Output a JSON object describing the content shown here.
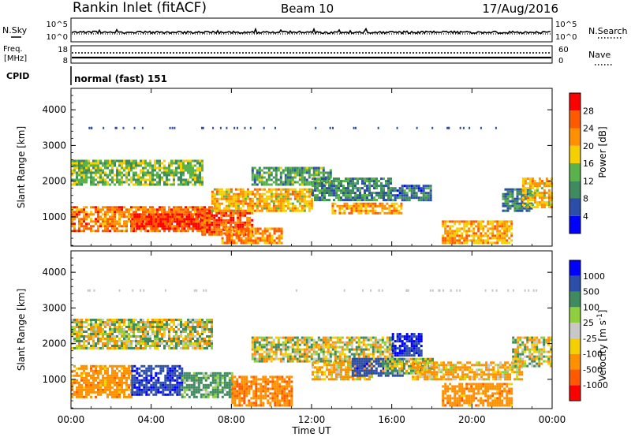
{
  "header": {
    "title": "Rankin Inlet (fitACF)",
    "beam": "Beam 10",
    "date": "17/Aug/2016"
  },
  "summary": {
    "nsky_label": "N.Sky",
    "nsearch_label": "N.Search",
    "nsky_ticks": [
      "10^5",
      "10^0"
    ],
    "nsearch_ticks": [
      "10^5",
      "10^0"
    ],
    "freq_label_1": "Freq.",
    "freq_label_2": "[MHz]",
    "freq_ticks": [
      "18",
      "8"
    ],
    "nave_label": "Nave",
    "nave_ticks": [
      "60",
      "0"
    ],
    "cpid_label": "CPID",
    "cpid_value": "normal (fast) 151"
  },
  "colors": {
    "power_scale": [
      "#0000ff",
      "#2d4ea8",
      "#3f8a5e",
      "#5ab34a",
      "#f5cf00",
      "#ff9000",
      "#ff5a00",
      "#ff0000"
    ],
    "velocity_scale": [
      "#ff0000",
      "#ff5a00",
      "#ff9000",
      "#f5cf00",
      "#c8c8c8",
      "#8fcf3f",
      "#3f8a5e",
      "#2d4ea8",
      "#0000ff"
    ]
  },
  "chart_data": [
    {
      "type": "heatmap",
      "panel": "power",
      "xlabel": "Time UT",
      "ylabel": "Slant Range [km]",
      "xlim": [
        0,
        24
      ],
      "ylim": [
        180,
        4600
      ],
      "x_ticks": [
        "00:00",
        "04:00",
        "08:00",
        "12:00",
        "16:00",
        "20:00",
        "00:00"
      ],
      "y_ticks": [
        1000,
        2000,
        3000,
        4000
      ],
      "colorbar_label": "Power [dB]",
      "colorbar_ticks": [
        "4",
        "8",
        "12",
        "16",
        "20",
        "24",
        "28"
      ],
      "colorbar_range": [
        0,
        30
      ],
      "regions": [
        {
          "t0": 0.0,
          "t1": 6.5,
          "r0": 1900,
          "r1": 2600,
          "value": 14
        },
        {
          "t0": 0.0,
          "t1": 7.0,
          "r0": 600,
          "r1": 1300,
          "value": 24
        },
        {
          "t0": 3.0,
          "t1": 6.5,
          "r0": 700,
          "r1": 1100,
          "value": 28
        },
        {
          "t0": 6.5,
          "t1": 9.0,
          "r0": 500,
          "r1": 1200,
          "value": 27
        },
        {
          "t0": 7.0,
          "t1": 12.0,
          "r0": 1200,
          "r1": 1800,
          "value": 20
        },
        {
          "t0": 7.5,
          "t1": 10.5,
          "r0": 250,
          "r1": 700,
          "value": 23
        },
        {
          "t0": 9.0,
          "t1": 13.0,
          "r0": 1900,
          "r1": 2400,
          "value": 12
        },
        {
          "t0": 12.0,
          "t1": 16.0,
          "r0": 1500,
          "r1": 2100,
          "value": 10
        },
        {
          "t0": 13.0,
          "t1": 16.5,
          "r0": 1100,
          "r1": 1400,
          "value": 22
        },
        {
          "t0": 16.0,
          "t1": 18.0,
          "r0": 1500,
          "r1": 1900,
          "value": 8
        },
        {
          "t0": 18.5,
          "t1": 22.0,
          "r0": 250,
          "r1": 900,
          "value": 21
        },
        {
          "t0": 21.5,
          "t1": 23.0,
          "r0": 1200,
          "r1": 1800,
          "value": 9
        },
        {
          "t0": 22.5,
          "t1": 24.0,
          "r0": 1300,
          "r1": 2100,
          "value": 20
        }
      ]
    },
    {
      "type": "heatmap",
      "panel": "velocity",
      "xlabel": "Time UT",
      "ylabel": "Slant Range [km]",
      "xlim": [
        0,
        24
      ],
      "ylim": [
        180,
        4600
      ],
      "x_ticks": [
        "00:00",
        "04:00",
        "08:00",
        "12:00",
        "16:00",
        "20:00",
        "00:00"
      ],
      "y_ticks": [
        1000,
        2000,
        3000,
        4000
      ],
      "colorbar_label": "Velocity [m s^-1]",
      "colorbar_ticks": [
        "1000",
        "500",
        "100",
        "25",
        "-25",
        "-100",
        "-500",
        "-1000"
      ],
      "regions": [
        {
          "t0": 0.0,
          "t1": 7.0,
          "r0": 1900,
          "r1": 2700,
          "value": 0
        },
        {
          "t0": 0.0,
          "t1": 3.0,
          "r0": 500,
          "r1": 1400,
          "value": -300
        },
        {
          "t0": 3.0,
          "t1": 5.5,
          "r0": 600,
          "r1": 1400,
          "value": 900
        },
        {
          "t0": 5.5,
          "t1": 8.0,
          "r0": 500,
          "r1": 1200,
          "value": 200
        },
        {
          "t0": 8.0,
          "t1": 11.0,
          "r0": 300,
          "r1": 1100,
          "value": -400
        },
        {
          "t0": 9.0,
          "t1": 16.0,
          "r0": 1500,
          "r1": 2200,
          "value": 0
        },
        {
          "t0": 12.0,
          "t1": 15.0,
          "r0": 1000,
          "r1": 1500,
          "value": -150
        },
        {
          "t0": 14.0,
          "t1": 16.5,
          "r0": 1100,
          "r1": 1600,
          "value": 800
        },
        {
          "t0": 16.0,
          "t1": 17.5,
          "r0": 1700,
          "r1": 2300,
          "value": 1000
        },
        {
          "t0": 15.5,
          "t1": 18.0,
          "r0": 1200,
          "r1": 1600,
          "value": 60
        },
        {
          "t0": 18.5,
          "t1": 22.0,
          "r0": 250,
          "r1": 900,
          "value": -300
        },
        {
          "t0": 17.0,
          "t1": 22.5,
          "r0": 1000,
          "r1": 1500,
          "value": -150
        },
        {
          "t0": 22.0,
          "t1": 24.0,
          "r0": 1400,
          "r1": 2200,
          "value": 0
        }
      ]
    }
  ]
}
